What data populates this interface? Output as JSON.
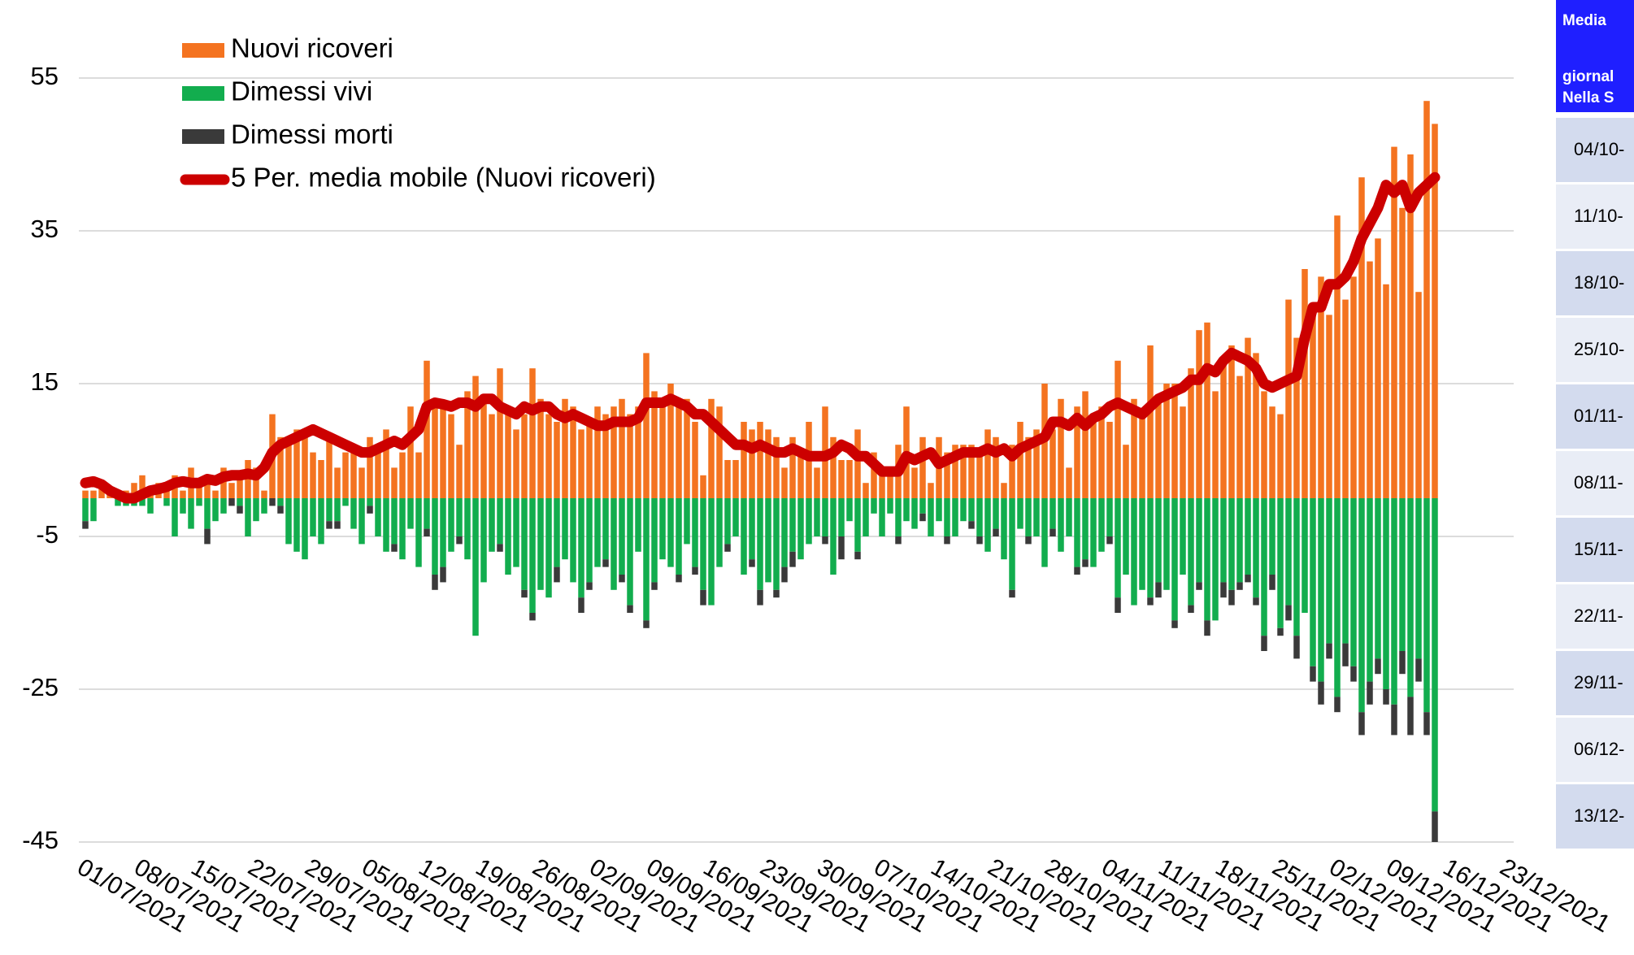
{
  "chart_data": {
    "type": "bar",
    "x": [
      "01/07/2021",
      "02/07/2021",
      "03/07/2021",
      "04/07/2021",
      "05/07/2021",
      "06/07/2021",
      "07/07/2021",
      "08/07/2021",
      "09/07/2021",
      "10/07/2021",
      "11/07/2021",
      "12/07/2021",
      "13/07/2021",
      "14/07/2021",
      "15/07/2021",
      "16/07/2021",
      "17/07/2021",
      "18/07/2021",
      "19/07/2021",
      "20/07/2021",
      "21/07/2021",
      "22/07/2021",
      "23/07/2021",
      "24/07/2021",
      "25/07/2021",
      "26/07/2021",
      "27/07/2021",
      "28/07/2021",
      "29/07/2021",
      "30/07/2021",
      "31/07/2021",
      "01/08/2021",
      "02/08/2021",
      "03/08/2021",
      "04/08/2021",
      "05/08/2021",
      "06/08/2021",
      "07/08/2021",
      "08/08/2021",
      "09/08/2021",
      "10/08/2021",
      "11/08/2021",
      "12/08/2021",
      "13/08/2021",
      "14/08/2021",
      "15/08/2021",
      "16/08/2021",
      "17/08/2021",
      "18/08/2021",
      "19/08/2021",
      "20/08/2021",
      "21/08/2021",
      "22/08/2021",
      "23/08/2021",
      "24/08/2021",
      "25/08/2021",
      "26/08/2021",
      "27/08/2021",
      "28/08/2021",
      "29/08/2021",
      "30/08/2021",
      "31/08/2021",
      "01/09/2021",
      "02/09/2021",
      "03/09/2021",
      "04/09/2021",
      "05/09/2021",
      "06/09/2021",
      "07/09/2021",
      "08/09/2021",
      "09/09/2021",
      "10/09/2021",
      "11/09/2021",
      "12/09/2021",
      "13/09/2021",
      "14/09/2021",
      "15/09/2021",
      "16/09/2021",
      "17/09/2021",
      "18/09/2021",
      "19/09/2021",
      "20/09/2021",
      "21/09/2021",
      "22/09/2021",
      "23/09/2021",
      "24/09/2021",
      "25/09/2021",
      "26/09/2021",
      "27/09/2021",
      "28/09/2021",
      "29/09/2021",
      "30/09/2021",
      "01/10/2021",
      "02/10/2021",
      "03/10/2021",
      "04/10/2021",
      "05/10/2021",
      "06/10/2021",
      "07/10/2021",
      "08/10/2021",
      "09/10/2021",
      "10/10/2021",
      "11/10/2021",
      "12/10/2021",
      "13/10/2021",
      "14/10/2021",
      "15/10/2021",
      "16/10/2021",
      "17/10/2021",
      "18/10/2021",
      "19/10/2021",
      "20/10/2021",
      "21/10/2021",
      "22/10/2021",
      "23/10/2021",
      "24/10/2021",
      "25/10/2021",
      "26/10/2021",
      "27/10/2021",
      "28/10/2021",
      "29/10/2021",
      "30/10/2021",
      "31/10/2021",
      "01/11/2021",
      "02/11/2021",
      "03/11/2021",
      "04/11/2021",
      "05/11/2021",
      "06/11/2021",
      "07/11/2021",
      "08/11/2021",
      "09/11/2021",
      "10/11/2021",
      "11/11/2021",
      "12/11/2021",
      "13/11/2021",
      "14/11/2021",
      "15/11/2021",
      "16/11/2021",
      "17/11/2021",
      "18/11/2021",
      "19/11/2021",
      "20/11/2021",
      "21/11/2021",
      "22/11/2021",
      "23/11/2021",
      "24/11/2021",
      "25/11/2021",
      "26/11/2021",
      "27/11/2021",
      "28/11/2021",
      "29/11/2021",
      "30/11/2021",
      "01/12/2021",
      "02/12/2021",
      "03/12/2021",
      "04/12/2021",
      "05/12/2021",
      "06/12/2021",
      "07/12/2021",
      "08/12/2021",
      "09/12/2021",
      "10/12/2021",
      "11/12/2021",
      "12/12/2021",
      "13/12/2021",
      "14/12/2021"
    ],
    "series": [
      {
        "name": "Nuovi ricoveri",
        "color": "#f47320",
        "values": [
          1,
          1,
          2,
          1,
          1,
          1,
          2,
          3,
          1,
          2,
          2,
          3,
          1,
          4,
          2,
          3,
          1,
          4,
          2,
          3,
          5,
          4,
          1,
          11,
          8,
          7,
          9,
          8,
          6,
          5,
          8,
          4,
          6,
          7,
          4,
          8,
          6,
          9,
          4,
          6,
          12,
          6,
          18,
          13,
          12,
          11,
          7,
          14,
          16,
          13,
          11,
          17,
          12,
          9,
          11,
          17,
          13,
          11,
          10,
          13,
          12,
          9,
          10,
          12,
          11,
          12,
          13,
          11,
          12,
          19,
          14,
          12,
          15,
          12,
          13,
          10,
          3,
          13,
          12,
          5,
          5,
          10,
          9,
          10,
          9,
          8,
          4,
          8,
          6,
          10,
          4,
          12,
          8,
          5,
          5,
          9,
          2,
          6,
          4,
          3,
          7,
          12,
          4,
          8,
          2,
          8,
          6,
          7,
          7,
          7,
          6,
          9,
          8,
          2,
          7,
          10,
          8,
          9,
          15,
          9,
          13,
          4,
          12,
          14,
          11,
          12,
          10,
          18,
          7,
          13,
          11,
          20,
          13,
          15,
          15,
          12,
          17,
          22,
          23,
          14,
          18,
          20,
          16,
          21,
          19,
          14,
          12,
          11,
          26,
          21,
          30,
          25,
          29,
          24,
          37,
          26,
          29,
          42,
          31,
          34,
          28,
          46,
          38,
          45,
          27,
          52,
          49
        ]
      },
      {
        "name": "Dimessi vivi",
        "color": "#12ad4e",
        "values": [
          -3,
          -3,
          0,
          0,
          -1,
          -1,
          -1,
          -1,
          -2,
          0,
          -1,
          -5,
          -2,
          -4,
          -1,
          -4,
          -3,
          -2,
          0,
          -1,
          -5,
          -3,
          -2,
          0,
          -1,
          -6,
          -7,
          -8,
          -5,
          -6,
          -3,
          -3,
          -1,
          -4,
          -6,
          -1,
          -5,
          -7,
          -6,
          -8,
          -4,
          -9,
          -4,
          -10,
          -9,
          -7,
          -5,
          -8,
          -18,
          -11,
          -7,
          -6,
          -10,
          -9,
          -12,
          -15,
          -12,
          -13,
          -9,
          -8,
          -11,
          -13,
          -11,
          -9,
          -8,
          -12,
          -10,
          -14,
          -7,
          -16,
          -11,
          -8,
          -9,
          -10,
          -6,
          -9,
          -12,
          -14,
          -9,
          -6,
          -5,
          -10,
          -8,
          -12,
          -11,
          -12,
          -9,
          -7,
          -8,
          -6,
          -5,
          -5,
          -10,
          -5,
          -3,
          -7,
          -5,
          -2,
          -5,
          -2,
          -5,
          -3,
          -4,
          -2,
          -5,
          -3,
          -5,
          -5,
          -3,
          -3,
          -5,
          -7,
          -4,
          -8,
          -12,
          -4,
          -5,
          -5,
          -9,
          -4,
          -7,
          -5,
          -9,
          -8,
          -9,
          -7,
          -5,
          -13,
          -10,
          -14,
          -12,
          -13,
          -11,
          -12,
          -16,
          -10,
          -14,
          -11,
          -16,
          -16,
          -11,
          -12,
          -11,
          -10,
          -13,
          -18,
          -10,
          -17,
          -14,
          -18,
          -15,
          -22,
          -24,
          -19,
          -26,
          -19,
          -22,
          -28,
          -24,
          -21,
          -25,
          -27,
          -20,
          -26,
          -21,
          -28,
          -41
        ]
      },
      {
        "name": "Dimessi morti",
        "color": "#3a3a3a",
        "values": [
          -1,
          0,
          0,
          0,
          0,
          0,
          0,
          0,
          0,
          0,
          0,
          0,
          0,
          0,
          0,
          -2,
          0,
          0,
          -1,
          -1,
          0,
          0,
          0,
          -1,
          -1,
          0,
          0,
          0,
          0,
          0,
          -1,
          -1,
          0,
          0,
          0,
          -1,
          0,
          0,
          -1,
          0,
          0,
          0,
          -1,
          -2,
          -2,
          0,
          -1,
          0,
          0,
          0,
          0,
          -1,
          0,
          0,
          -1,
          -1,
          0,
          0,
          -2,
          0,
          0,
          -2,
          -1,
          0,
          -1,
          0,
          -1,
          -1,
          0,
          -1,
          -1,
          0,
          0,
          -1,
          0,
          -1,
          -2,
          0,
          0,
          -1,
          0,
          0,
          -1,
          -2,
          0,
          -1,
          -2,
          -2,
          0,
          0,
          0,
          -1,
          0,
          -3,
          0,
          -1,
          0,
          0,
          0,
          0,
          -1,
          0,
          0,
          -1,
          0,
          0,
          -1,
          0,
          0,
          -1,
          -1,
          0,
          -1,
          0,
          -1,
          0,
          -1,
          0,
          0,
          -1,
          0,
          0,
          -1,
          -1,
          0,
          0,
          -1,
          -2,
          0,
          0,
          0,
          -1,
          -2,
          0,
          -1,
          0,
          -1,
          -1,
          -2,
          0,
          -2,
          -2,
          -1,
          -1,
          -1,
          -2,
          -2,
          -1,
          -2,
          -3,
          0,
          -2,
          -3,
          -2,
          -2,
          -3,
          -2,
          -3,
          -3,
          -2,
          -2,
          -4,
          -3,
          -5,
          -3,
          -3,
          -4
        ]
      },
      {
        "name": "5 Per. media mobile (Nuovi ricoveri)",
        "color": "#cc0000",
        "type": "line",
        "values": [
          2,
          2.2,
          1.8,
          1,
          0.5,
          0,
          0,
          0.5,
          1,
          1.2,
          1.5,
          2,
          2.2,
          2,
          2,
          2.5,
          2.3,
          2.8,
          3,
          3,
          3.2,
          3,
          4,
          6,
          7,
          7.5,
          8,
          8.5,
          9,
          8.5,
          8,
          7.5,
          7,
          6.5,
          6,
          6,
          6.5,
          7,
          7.5,
          7,
          8,
          9,
          12,
          12.5,
          12.3,
          12,
          12.5,
          12.5,
          12,
          13,
          13,
          12,
          11.5,
          11,
          12,
          11.5,
          12,
          12,
          11,
          10.5,
          11,
          10.5,
          10,
          9.5,
          9.5,
          10,
          10,
          10,
          10.5,
          12.5,
          12.5,
          12.5,
          13,
          12.5,
          12,
          11,
          11,
          10,
          9,
          8,
          7,
          7,
          6.5,
          7,
          6.5,
          6,
          6,
          6.5,
          6,
          5.5,
          5.5,
          5.5,
          6,
          7,
          6.5,
          5.5,
          5.5,
          4.5,
          3.5,
          3.5,
          3.5,
          5.5,
          5,
          5.5,
          6,
          4.5,
          5,
          5.5,
          6,
          6,
          6,
          6.5,
          6,
          6.5,
          5.5,
          6.5,
          7,
          7.5,
          8,
          10,
          10,
          9.5,
          10.5,
          9.5,
          10.5,
          11,
          12,
          12.5,
          12,
          11.5,
          11,
          12,
          13,
          13.5,
          14,
          14.5,
          15.5,
          15.5,
          17,
          16.5,
          18,
          19,
          18.5,
          18,
          17,
          15,
          14.5,
          15,
          15.5,
          16,
          21,
          25,
          25,
          28,
          28,
          29,
          31,
          34,
          36,
          38,
          41,
          40,
          41,
          38,
          40,
          41,
          42
        ]
      }
    ],
    "xlim": [
      "01/07/2021",
      "23/12/2021"
    ],
    "xticks": [
      "01/07/2021",
      "08/07/2021",
      "15/07/2021",
      "22/07/2021",
      "29/07/2021",
      "05/08/2021",
      "12/08/2021",
      "19/08/2021",
      "26/08/2021",
      "02/09/2021",
      "09/09/2021",
      "16/09/2021",
      "23/09/2021",
      "30/09/2021",
      "07/10/2021",
      "14/10/2021",
      "21/10/2021",
      "28/10/2021",
      "04/11/2021",
      "11/11/2021",
      "18/11/2021",
      "25/11/2021",
      "02/12/2021",
      "09/12/2021",
      "16/12/2021",
      "23/12/2021"
    ],
    "ylim": [
      -45,
      55
    ],
    "yticks": [
      55,
      35,
      15,
      -5,
      -25,
      -45
    ],
    "grid": true,
    "legend": "top-left"
  },
  "table": {
    "header": [
      "Media",
      "giornal",
      "Nella S"
    ],
    "rows": [
      "04/10-",
      "11/10-",
      "18/10-",
      "25/10-",
      "01/11-",
      "08/11-",
      "15/11-",
      "22/11-",
      "29/11-",
      "06/12-",
      "13/12-"
    ]
  }
}
